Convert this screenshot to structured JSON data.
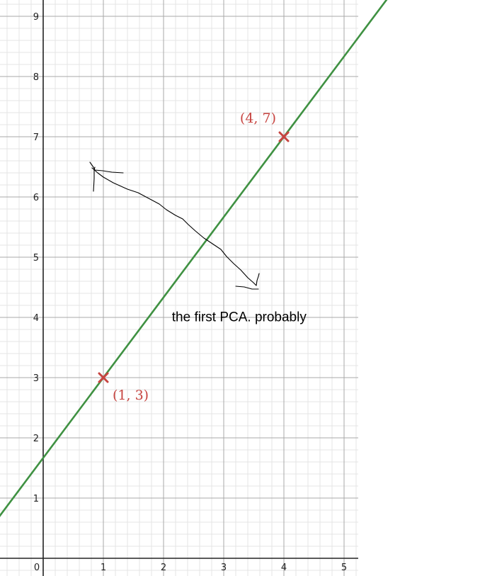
{
  "chart_data": {
    "type": "scatter",
    "title": "",
    "xlabel": "",
    "ylabel": "",
    "xlim": [
      -0.7,
      5.25
    ],
    "ylim": [
      -0.3,
      9.25
    ],
    "x_ticks": [
      "0",
      "1",
      "2",
      "3",
      "4",
      "5"
    ],
    "y_ticks": [
      "1",
      "2",
      "3",
      "4",
      "5",
      "6",
      "7",
      "8",
      "9"
    ],
    "grid": true,
    "series": [
      {
        "type": "line",
        "color": "#3f9142",
        "slope": 1.3333,
        "intercept": 1.6667
      },
      {
        "type": "points",
        "color": "#c74440",
        "marker": "x",
        "points": [
          {
            "x": 1,
            "y": 3,
            "label": "(1, 3)"
          },
          {
            "x": 4,
            "y": 7,
            "label": "(4, 7)"
          }
        ]
      }
    ],
    "annotations": [
      {
        "text": "the first PCA. probably",
        "x": 2.15,
        "y": 3.95
      }
    ]
  }
}
